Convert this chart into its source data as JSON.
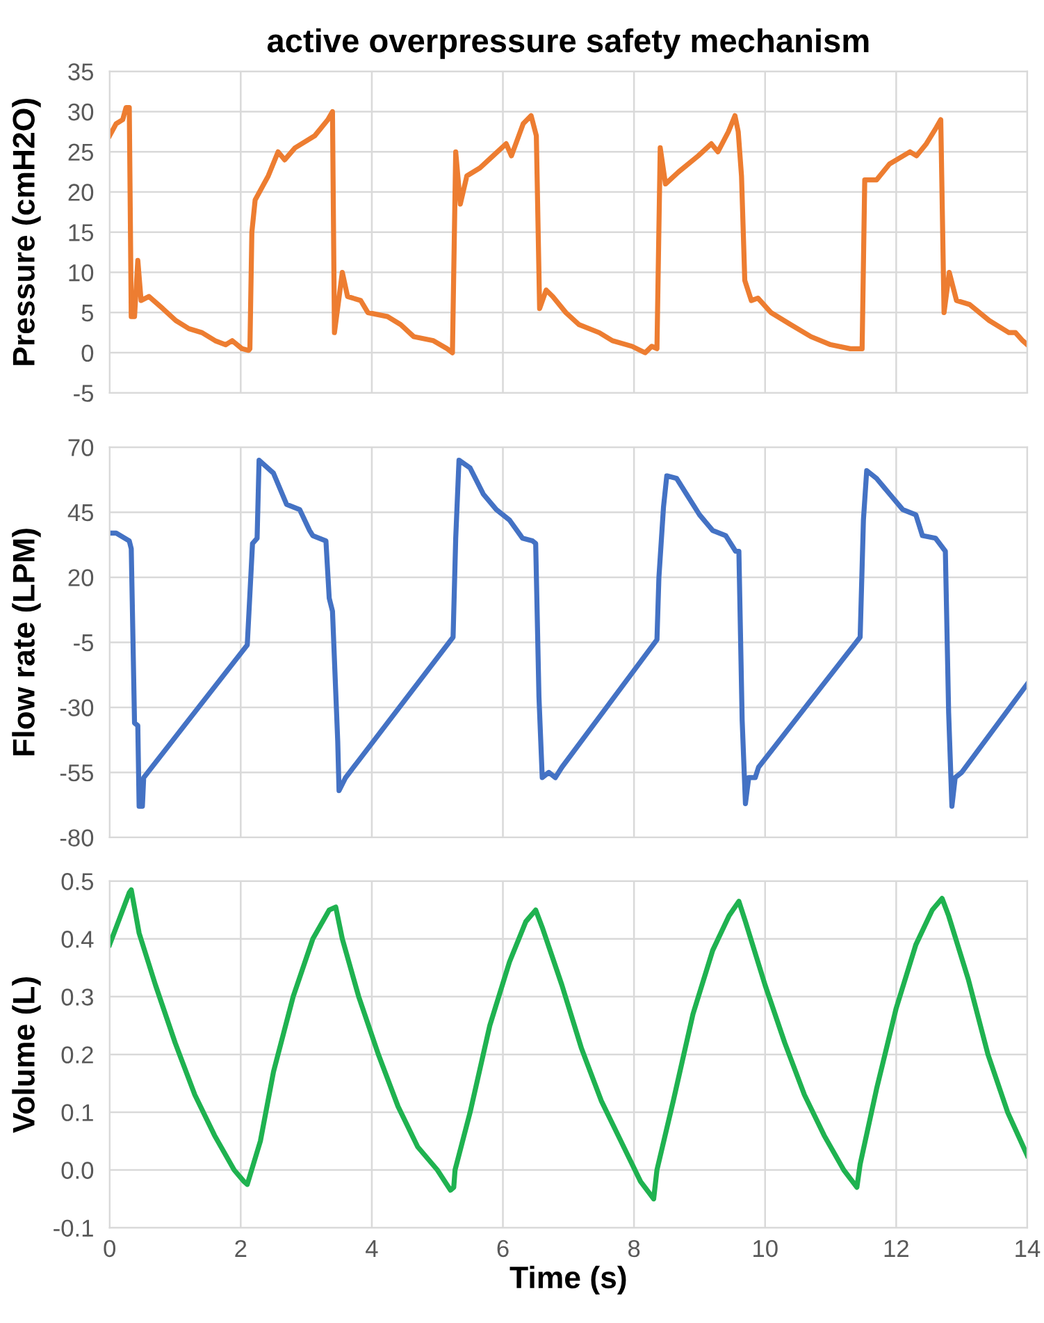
{
  "chart_data": [
    {
      "type": "line",
      "title": "active overpressure safety mechanism",
      "ylabel": "Pressure (cmH2O)",
      "xlim": [
        0,
        14
      ],
      "xticks": [
        0,
        2,
        4,
        6,
        8,
        10,
        12,
        14
      ],
      "ylim": [
        -5,
        35
      ],
      "yticks": [
        -5,
        0,
        5,
        10,
        15,
        20,
        25,
        30,
        35
      ],
      "grid": true,
      "tick_labels": "y",
      "line_style": "solid",
      "series": [
        {
          "color": "#ed7d31",
          "x": [
            0,
            0.1,
            0.2,
            0.25,
            0.3,
            0.33,
            0.38,
            0.43,
            0.48,
            0.6,
            0.81,
            1.01,
            1.21,
            1.41,
            1.61,
            1.77,
            1.87,
            2.02,
            2.12,
            2.14,
            2.17,
            2.22,
            2.42,
            2.52,
            2.57,
            2.67,
            2.83,
            3.13,
            3.33,
            3.4,
            3.43,
            3.55,
            3.63,
            3.83,
            3.94,
            4.24,
            4.44,
            4.64,
            4.94,
            5.15,
            5.23,
            5.28,
            5.35,
            5.45,
            5.65,
            5.85,
            6.05,
            6.13,
            6.31,
            6.43,
            6.51,
            6.56,
            6.66,
            6.76,
            6.96,
            7.16,
            7.47,
            7.67,
            7.97,
            8.17,
            8.27,
            8.35,
            8.4,
            8.48,
            8.68,
            8.98,
            9.18,
            9.28,
            9.44,
            9.54,
            9.59,
            9.64,
            9.69,
            9.79,
            9.89,
            10.09,
            10.39,
            10.7,
            11.0,
            11.3,
            11.48,
            11.52,
            11.7,
            11.9,
            12.21,
            12.31,
            12.46,
            12.61,
            12.68,
            12.73,
            12.81,
            12.92,
            13.12,
            13.42,
            13.72,
            13.82,
            13.93,
            14
          ],
          "values": [
            27,
            28.5,
            29,
            30.5,
            30.5,
            4.5,
            4.5,
            11.5,
            6.5,
            7,
            5.5,
            4,
            3,
            2.5,
            1.5,
            1,
            1.5,
            0.5,
            0.3,
            0.5,
            15,
            19,
            22,
            24,
            25,
            24,
            25.5,
            27,
            29,
            30,
            2.5,
            10,
            7,
            6.5,
            5,
            4.5,
            3.5,
            2,
            1.5,
            0.5,
            0,
            25,
            18.5,
            22,
            23,
            24.5,
            26,
            24.5,
            28.5,
            29.5,
            27,
            5.5,
            7.8,
            7,
            5,
            3.5,
            2.5,
            1.5,
            0.8,
            0,
            0.8,
            0.5,
            25.5,
            21,
            22.5,
            24.5,
            26,
            25,
            27.5,
            29.5,
            27.5,
            22,
            9,
            6.5,
            6.8,
            5,
            3.5,
            2,
            1,
            0.5,
            0.5,
            21.5,
            21.5,
            23.5,
            25,
            24.5,
            26,
            28,
            29,
            5,
            10,
            6.5,
            6,
            4,
            2.5,
            2.5,
            1.5,
            1
          ]
        }
      ]
    },
    {
      "type": "line",
      "ylabel": "Flow rate (LPM)",
      "xlim": [
        0,
        14
      ],
      "xticks": [
        0,
        2,
        4,
        6,
        8,
        10,
        12,
        14
      ],
      "ylim": [
        -80,
        70
      ],
      "yticks": [
        -80,
        -55,
        -30,
        -5,
        20,
        45,
        70
      ],
      "grid": true,
      "tick_labels": "y",
      "line_style": "solid",
      "series": [
        {
          "color": "#4472c4",
          "x": [
            0,
            0.1,
            0.3,
            0.33,
            0.38,
            0.43,
            0.45,
            0.5,
            0.52,
            2.1,
            2.18,
            2.25,
            2.28,
            2.5,
            2.7,
            2.9,
            3.05,
            3.1,
            3.3,
            3.35,
            3.4,
            3.48,
            3.5,
            3.6,
            5.24,
            5.28,
            5.33,
            5.5,
            5.7,
            5.9,
            6.1,
            6.3,
            6.45,
            6.5,
            6.55,
            6.6,
            6.7,
            6.8,
            6.9,
            8.35,
            8.38,
            8.45,
            8.5,
            8.65,
            8.8,
            9.0,
            9.2,
            9.4,
            9.55,
            9.6,
            9.65,
            9.7,
            9.75,
            9.85,
            9.9,
            11.45,
            11.5,
            11.55,
            11.7,
            11.9,
            12.1,
            12.3,
            12.4,
            12.6,
            12.75,
            12.8,
            12.85,
            12.9,
            13.0,
            14
          ],
          "values": [
            37,
            37,
            34,
            31,
            -36,
            -37,
            -68,
            -68,
            -57,
            -6,
            33,
            35,
            65,
            60,
            48,
            46,
            38,
            36,
            34,
            12,
            7,
            -43,
            -62,
            -57,
            -3,
            35,
            65,
            62,
            52,
            46,
            42,
            35,
            34,
            33,
            -26,
            -57,
            -55,
            -57,
            -53,
            -4,
            20,
            47,
            59,
            58,
            52,
            44,
            38,
            36,
            30,
            30,
            -35,
            -67,
            -57,
            -57,
            -53,
            -3,
            42,
            61,
            58,
            52,
            46,
            44,
            36,
            35,
            30,
            -32,
            -68,
            -57,
            -55,
            -21
          ]
        }
      ]
    },
    {
      "type": "line",
      "ylabel": "Volume (L)",
      "xlabel": "Time (s)",
      "xlim": [
        0,
        14
      ],
      "xticks": [
        0,
        2,
        4,
        6,
        8,
        10,
        12,
        14
      ],
      "ylim": [
        -0.1,
        0.5
      ],
      "yticks": [
        {
          "value": -0.1,
          "label": "-0.1"
        },
        {
          "value": 0.0,
          "label": "0.0"
        },
        0.1,
        0.2,
        0.3,
        0.4,
        0.5
      ],
      "grid": true,
      "line_style": "solid",
      "series": [
        {
          "color": "#1fb250",
          "x": [
            0,
            0.1,
            0.2,
            0.3,
            0.33,
            0.45,
            0.7,
            1.0,
            1.3,
            1.6,
            1.9,
            2.05,
            2.1,
            2.3,
            2.5,
            2.8,
            3.1,
            3.35,
            3.45,
            3.55,
            3.8,
            4.1,
            4.4,
            4.7,
            5.0,
            5.2,
            5.25,
            5.27,
            5.5,
            5.8,
            6.1,
            6.35,
            6.5,
            6.6,
            6.9,
            7.2,
            7.5,
            7.8,
            8.1,
            8.3,
            8.35,
            8.6,
            8.9,
            9.2,
            9.45,
            9.6,
            9.7,
            10.0,
            10.3,
            10.6,
            10.9,
            11.2,
            11.4,
            11.45,
            11.7,
            12.0,
            12.3,
            12.55,
            12.7,
            12.8,
            13.1,
            13.4,
            13.7,
            14
          ],
          "values": [
            0.39,
            0.42,
            0.45,
            0.48,
            0.485,
            0.41,
            0.32,
            0.22,
            0.13,
            0.06,
            0.0,
            -0.02,
            -0.025,
            0.05,
            0.17,
            0.3,
            0.4,
            0.45,
            0.455,
            0.4,
            0.3,
            0.2,
            0.11,
            0.04,
            0.0,
            -0.035,
            -0.03,
            0.0,
            0.1,
            0.25,
            0.36,
            0.43,
            0.45,
            0.42,
            0.32,
            0.21,
            0.12,
            0.05,
            -0.02,
            -0.05,
            0.0,
            0.12,
            0.27,
            0.38,
            0.44,
            0.465,
            0.43,
            0.32,
            0.22,
            0.13,
            0.06,
            0.0,
            -0.03,
            0.01,
            0.14,
            0.28,
            0.39,
            0.45,
            0.47,
            0.44,
            0.33,
            0.2,
            0.1,
            0.025
          ]
        }
      ]
    }
  ]
}
